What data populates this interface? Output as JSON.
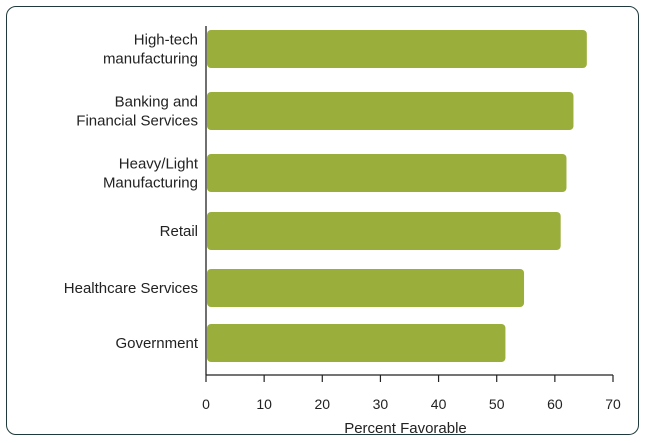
{
  "chart_data": {
    "type": "bar",
    "orientation": "horizontal",
    "categories": [
      [
        "High-tech",
        "manufacturing"
      ],
      [
        "Banking and",
        "Financial Services"
      ],
      [
        "Heavy/Light",
        "Manufacturing"
      ],
      [
        "Retail"
      ],
      [
        "Healthcare Services"
      ],
      [
        "Government"
      ]
    ],
    "values": [
      65.5,
      63.2,
      62.0,
      61.0,
      54.7,
      51.5
    ],
    "xlabel": "Percent Favorable",
    "ylabel": "",
    "title": "",
    "xlim": [
      0,
      70
    ],
    "xticks": [
      "0",
      "10",
      "20",
      "30",
      "40",
      "50",
      "60",
      "70"
    ],
    "grid": false,
    "legend": "none",
    "bar_color": "#9aae3c"
  }
}
